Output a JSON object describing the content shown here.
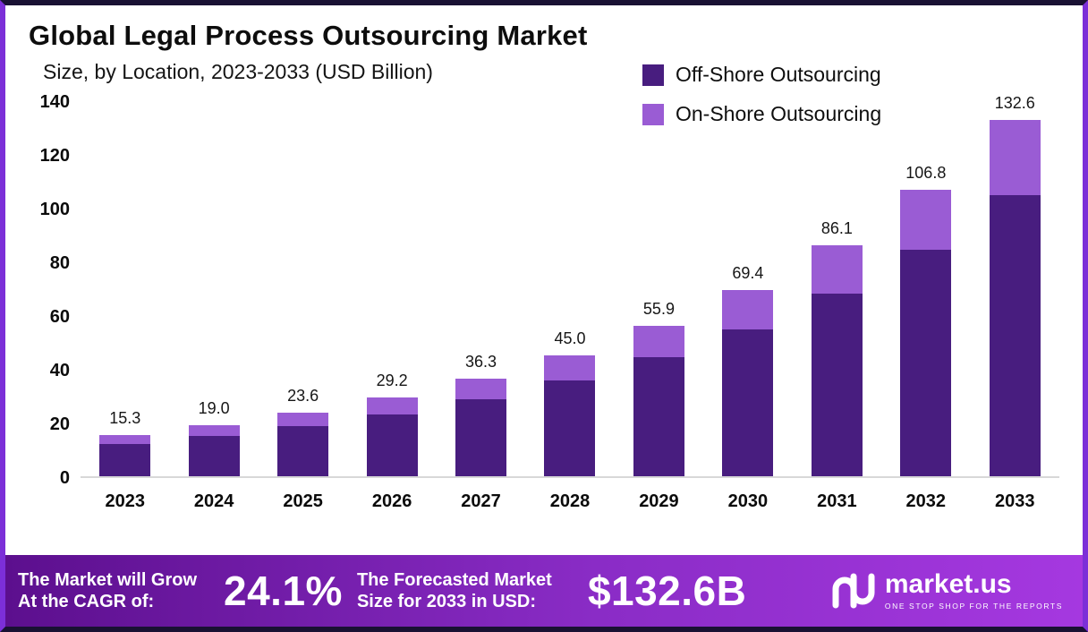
{
  "header": {
    "title": "Global Legal Process Outsourcing Market",
    "subtitle": "Size, by Location, 2023-2033 (USD Billion)"
  },
  "legend": [
    {
      "label": "Off-Shore Outsourcing",
      "color": "#481d7f"
    },
    {
      "label": "On-Shore Outsourcing",
      "color": "#9a5cd4"
    }
  ],
  "chart_data": {
    "type": "bar",
    "stacked": true,
    "title": "Global Legal Process Outsourcing Market Size, by Location, 2023-2033 (USD Billion)",
    "categories": [
      "2023",
      "2024",
      "2025",
      "2026",
      "2027",
      "2028",
      "2029",
      "2030",
      "2031",
      "2032",
      "2033"
    ],
    "series": [
      {
        "name": "Off-Shore Outsourcing",
        "color": "#481d7f",
        "values": [
          12.1,
          15.0,
          18.6,
          23.1,
          28.7,
          35.6,
          44.2,
          54.8,
          68.0,
          84.4,
          104.8
        ]
      },
      {
        "name": "On-Shore Outsourcing",
        "color": "#9a5cd4",
        "values": [
          3.2,
          4.0,
          5.0,
          6.1,
          7.6,
          9.4,
          11.7,
          14.6,
          18.1,
          22.4,
          27.8
        ]
      }
    ],
    "totals": [
      15.3,
      19.0,
      23.6,
      29.2,
      36.3,
      45.0,
      55.9,
      69.4,
      86.1,
      106.8,
      132.6
    ],
    "xlabel": "",
    "ylabel": "",
    "ylim": [
      0,
      140
    ],
    "yticks": [
      0,
      20,
      40,
      60,
      80,
      100,
      120,
      140
    ],
    "grid": false,
    "legend_position": "top-right"
  },
  "footer": {
    "cagr_label": "The Market will Grow At the CAGR of:",
    "cagr_value": "24.1%",
    "forecast_label": "The Forecasted Market Size for 2033 in USD:",
    "forecast_value": "$132.6B",
    "brand": "market.us",
    "brand_tagline": "ONE STOP SHOP FOR THE REPORTS"
  },
  "colors": {
    "frame_dark": "#191133",
    "frame_purple": "#7c2fd8",
    "footer_gradient_start": "#5c0f8e",
    "footer_gradient_end": "#a538e0"
  }
}
